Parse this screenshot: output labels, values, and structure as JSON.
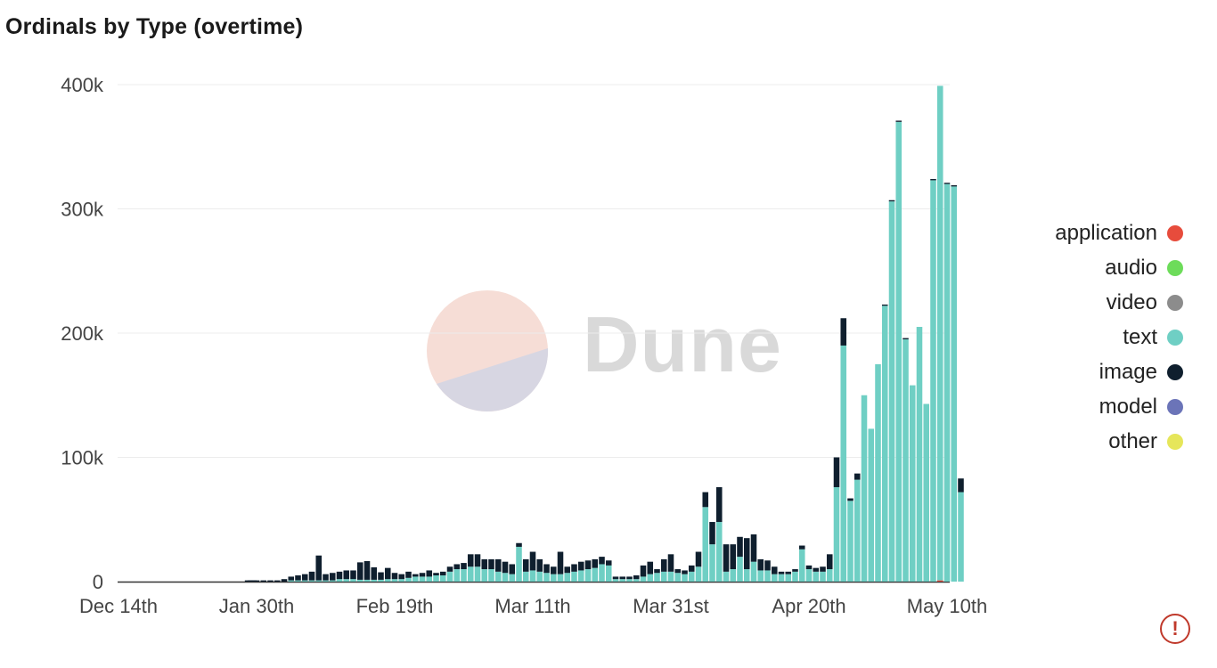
{
  "chart_data": {
    "type": "bar",
    "stacked": true,
    "title": "Ordinals by Type (overtime)",
    "xlabel": "",
    "ylabel": "",
    "ylim": [
      0,
      400000
    ],
    "y_ticks": [
      0,
      100000,
      200000,
      300000,
      400000
    ],
    "y_tick_labels": [
      "0",
      "100k",
      "200k",
      "300k",
      "400k"
    ],
    "x_ticks": [
      "2022-12-14",
      "2023-01-30",
      "2023-02-19",
      "2023-03-11",
      "2023-03-31",
      "2023-04-20",
      "2023-05-10"
    ],
    "x_tick_labels": [
      "Dec 14th",
      "Jan 30th",
      "Feb 19th",
      "Mar 11th",
      "Mar 31st",
      "Apr 20th",
      "May 10th"
    ],
    "x_range": [
      "2022-12-14",
      "2023-05-10"
    ],
    "grid": true,
    "legend_position": "right",
    "x_segments": [
      {
        "from": "2022-12-14",
        "to": "2023-01-30",
        "days": 47
      }
    ],
    "bars_start_date": "2023-01-27",
    "series": [
      {
        "name": "application",
        "color": "#e74c3c",
        "values": [
          0,
          0,
          0,
          0,
          0,
          0,
          0,
          0,
          0,
          0,
          0,
          0,
          0,
          0,
          0,
          0,
          0,
          0,
          0,
          0,
          0,
          0,
          0,
          0,
          0,
          0,
          0,
          0,
          0,
          0,
          0,
          0,
          0,
          0,
          0,
          0,
          0,
          0,
          0,
          0,
          0,
          0,
          0,
          0,
          0,
          0,
          0,
          0,
          0,
          0,
          0,
          0,
          0,
          0,
          0,
          0,
          0,
          0,
          0,
          0,
          0,
          0,
          0,
          0,
          0,
          0,
          0,
          0,
          0,
          0,
          0,
          0,
          0,
          0,
          0,
          0,
          0,
          0,
          0,
          0,
          0,
          0,
          0,
          0,
          0,
          0,
          0,
          0,
          0,
          0,
          0,
          0,
          0,
          0,
          0,
          0,
          0,
          0,
          0,
          0,
          0,
          0,
          1000,
          0,
          0,
          0,
          0,
          0,
          0,
          0,
          0,
          0,
          0,
          0
        ]
      },
      {
        "name": "audio",
        "color": "#6ddc5a",
        "values": [
          0,
          0,
          0,
          0,
          0,
          0,
          0,
          0,
          0,
          0,
          0,
          0,
          0,
          0,
          0,
          0,
          0,
          0,
          0,
          0,
          0,
          0,
          0,
          0,
          0,
          0,
          0,
          0,
          0,
          0,
          0,
          0,
          0,
          0,
          0,
          0,
          0,
          0,
          0,
          0,
          0,
          0,
          0,
          0,
          0,
          0,
          0,
          0,
          0,
          0,
          0,
          0,
          0,
          0,
          0,
          0,
          0,
          0,
          0,
          0,
          0,
          0,
          0,
          0,
          0,
          0,
          0,
          0,
          0,
          0,
          0,
          0,
          0,
          0,
          0,
          0,
          0,
          0,
          0,
          0,
          0,
          0,
          0,
          0,
          0,
          0,
          0,
          0,
          0,
          0,
          0,
          0,
          0,
          0,
          0,
          0,
          0,
          0,
          0,
          0,
          0,
          0,
          0,
          0,
          0,
          0,
          0,
          0,
          0,
          0,
          0,
          0,
          0,
          0
        ]
      },
      {
        "name": "video",
        "color": "#8c8c8c",
        "values": [
          0,
          0,
          0,
          0,
          0,
          0,
          0,
          0,
          0,
          0,
          0,
          0,
          0,
          0,
          0,
          0,
          0,
          0,
          0,
          0,
          0,
          0,
          0,
          0,
          0,
          0,
          0,
          0,
          0,
          0,
          0,
          0,
          0,
          0,
          0,
          0,
          0,
          0,
          0,
          0,
          0,
          0,
          0,
          0,
          0,
          0,
          0,
          0,
          0,
          0,
          0,
          0,
          0,
          0,
          0,
          0,
          0,
          0,
          0,
          0,
          0,
          0,
          0,
          0,
          0,
          0,
          0,
          0,
          0,
          0,
          0,
          0,
          0,
          0,
          0,
          0,
          0,
          0,
          0,
          0,
          0,
          0,
          0,
          0,
          0,
          0,
          0,
          0,
          0,
          0,
          0,
          0,
          0,
          0,
          0,
          0,
          0,
          0,
          0,
          0,
          0,
          0,
          0,
          0,
          0,
          0,
          0,
          0,
          0,
          0,
          0,
          0,
          0,
          0
        ]
      },
      {
        "name": "text",
        "color": "#6fcfc4",
        "values": [
          0,
          0,
          0,
          0,
          0,
          0,
          0,
          0,
          1000,
          1000,
          1000,
          1000,
          1000,
          1000,
          1000,
          2000,
          2000,
          2000,
          1500,
          1500,
          1500,
          1500,
          2000,
          2000,
          2000,
          3000,
          4000,
          4000,
          4000,
          5000,
          5000,
          8000,
          10000,
          10000,
          12000,
          12000,
          10000,
          10000,
          8000,
          7000,
          6000,
          28000,
          8000,
          9000,
          8000,
          7000,
          6000,
          6000,
          7000,
          8000,
          9000,
          10000,
          11000,
          14000,
          13000,
          2000,
          2000,
          2000,
          2000,
          4000,
          6000,
          7000,
          8000,
          8000,
          7000,
          6000,
          8000,
          12000,
          60000,
          30000,
          48000,
          8000,
          10000,
          20000,
          10000,
          16000,
          9000,
          9000,
          6000,
          6000,
          6000,
          8000,
          26000,
          10000,
          8000,
          8000,
          10000,
          76000,
          190000,
          65000,
          82000,
          150000,
          123000,
          175000,
          222000,
          306000,
          370000,
          195000,
          158000,
          205000,
          143000,
          323000,
          398000,
          320000,
          318000,
          72000
        ]
      },
      {
        "name": "image",
        "color": "#0f1f2e",
        "values": [
          1000,
          1000,
          1000,
          1000,
          1000,
          1000,
          1000,
          2000,
          3000,
          4000,
          5000,
          7000,
          20000,
          5000,
          6000,
          6000,
          7000,
          7000,
          14000,
          15000,
          10000,
          6000,
          9000,
          5000,
          4000,
          5000,
          2000,
          3000,
          5000,
          2000,
          3000,
          4000,
          4000,
          5000,
          10000,
          10000,
          8000,
          8000,
          10000,
          9000,
          8000,
          3000,
          10000,
          15000,
          10000,
          7000,
          6000,
          18000,
          5000,
          6000,
          7000,
          7000,
          7000,
          6000,
          4000,
          2000,
          2000,
          2000,
          3000,
          9000,
          10000,
          3000,
          10000,
          14000,
          3000,
          3000,
          5000,
          12000,
          12000,
          18000,
          28000,
          22000,
          20000,
          16000,
          25000,
          22000,
          9000,
          8000,
          6000,
          2000,
          2000,
          2000,
          3000,
          3000,
          3000,
          4000,
          12000,
          24000,
          22000,
          2000,
          5000,
          0,
          0,
          0,
          1000,
          1000,
          1000,
          1000,
          0,
          0,
          0,
          1000,
          0,
          1000,
          1000,
          11000
        ]
      },
      {
        "name": "model",
        "color": "#6b74b8",
        "values": [
          0,
          0,
          0,
          0,
          0,
          0,
          0,
          0,
          0,
          0,
          0,
          0,
          0,
          0,
          0,
          0,
          0,
          0,
          0,
          0,
          0,
          0,
          0,
          0,
          0,
          0,
          0,
          0,
          0,
          0,
          0,
          0,
          0,
          0,
          0,
          0,
          0,
          0,
          0,
          0,
          0,
          0,
          0,
          0,
          0,
          0,
          0,
          0,
          0,
          0,
          0,
          0,
          0,
          0,
          0,
          0,
          0,
          0,
          0,
          0,
          0,
          0,
          0,
          0,
          0,
          0,
          0,
          0,
          0,
          0,
          0,
          0,
          0,
          0,
          0,
          0,
          0,
          0,
          0,
          0,
          0,
          0,
          0,
          0,
          0,
          0,
          0,
          0,
          0,
          0,
          0,
          0,
          0,
          0,
          0,
          0,
          0,
          0,
          0,
          0,
          0,
          0,
          0,
          0,
          0,
          0,
          0,
          0,
          0,
          0,
          0,
          0,
          0,
          0
        ]
      },
      {
        "name": "other",
        "color": "#e6e65a",
        "values": [
          0,
          0,
          0,
          0,
          0,
          0,
          0,
          0,
          0,
          0,
          0,
          0,
          0,
          0,
          0,
          0,
          0,
          0,
          0,
          0,
          0,
          0,
          0,
          0,
          0,
          0,
          0,
          0,
          0,
          0,
          0,
          0,
          0,
          0,
          0,
          0,
          0,
          0,
          0,
          0,
          0,
          0,
          0,
          0,
          0,
          0,
          0,
          0,
          0,
          0,
          0,
          0,
          0,
          0,
          0,
          0,
          0,
          0,
          0,
          0,
          0,
          0,
          0,
          0,
          0,
          0,
          0,
          0,
          0,
          0,
          0,
          0,
          0,
          0,
          0,
          0,
          0,
          0,
          0,
          0,
          0,
          0,
          0,
          0,
          0,
          0,
          0,
          0,
          0,
          0,
          0,
          0,
          0,
          0,
          0,
          0,
          0,
          0,
          0,
          0,
          0,
          0,
          0,
          0,
          0,
          0,
          0,
          0,
          0,
          0,
          0,
          0,
          0,
          0
        ]
      }
    ]
  },
  "watermark": {
    "text": "Dune"
  },
  "alert": {
    "symbol": "!",
    "color": "#c0392b"
  }
}
